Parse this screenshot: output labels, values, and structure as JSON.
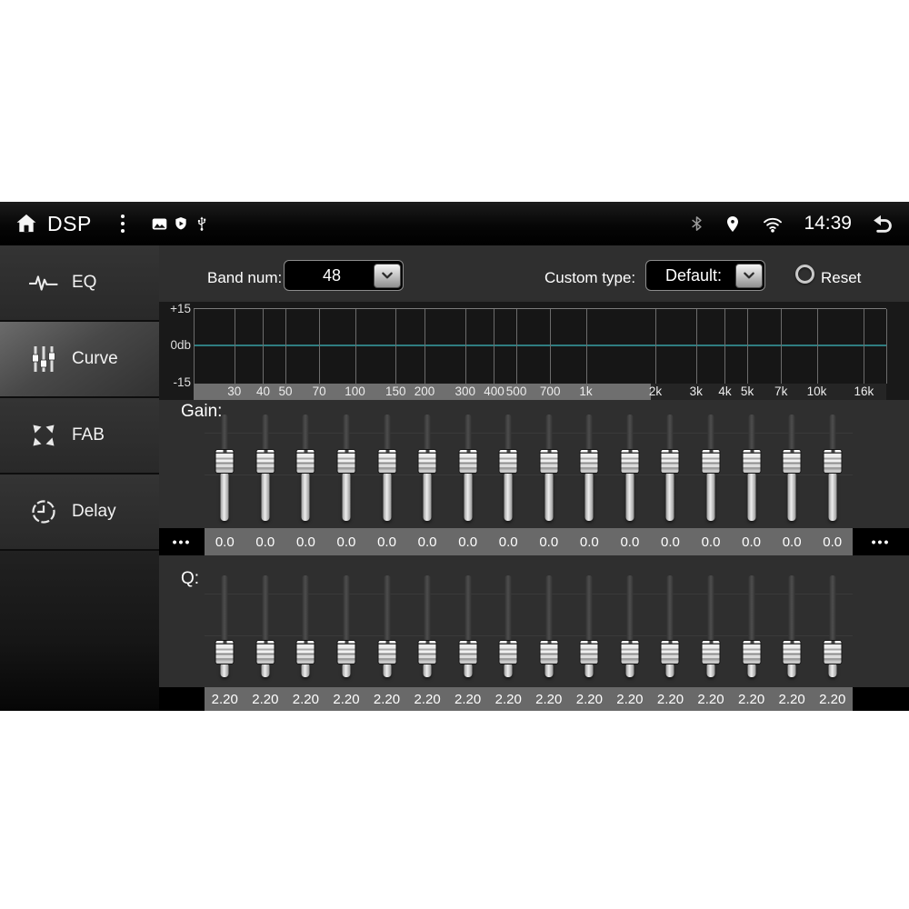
{
  "status_bar": {
    "app_title": "DSP",
    "time": "14:39",
    "left_icons": [
      "home-icon",
      "overflow-menu-icon",
      "gallery-icon",
      "shield-icon",
      "usb-icon"
    ],
    "right_icons": [
      "bluetooth-icon",
      "location-icon",
      "wifi-icon",
      "back-icon"
    ]
  },
  "sidebar": {
    "items": [
      {
        "label": "EQ",
        "icon": "eq-waveform-icon",
        "selected": false
      },
      {
        "label": "Curve",
        "icon": "sliders-icon",
        "selected": true
      },
      {
        "label": "FAB",
        "icon": "fab-arrows-icon",
        "selected": false
      },
      {
        "label": "Delay",
        "icon": "clock-icon",
        "selected": false
      }
    ]
  },
  "controls": {
    "band_num_label": "Band num:",
    "band_num_value": "48",
    "custom_type_label": "Custom type:",
    "custom_type_value": "Default:",
    "reset_label": "Reset",
    "reset_selected": false
  },
  "curve_plot": {
    "y_axis_labels": [
      "+15",
      "0db",
      "-15"
    ],
    "freq_labels": [
      "30",
      "40",
      "50",
      "70",
      "100",
      "150",
      "200",
      "300",
      "400",
      "500",
      "700",
      "1k",
      "2k",
      "3k",
      "4k",
      "5k",
      "7k",
      "10k",
      "16k"
    ],
    "freq_hz": [
      30,
      40,
      50,
      70,
      100,
      150,
      200,
      300,
      400,
      500,
      700,
      1000,
      2000,
      3000,
      4000,
      5000,
      7000,
      10000,
      16000
    ],
    "range_hz": [
      20,
      20000
    ],
    "zero_line_color": "#2f7d80",
    "scroll_thumb_pct": 66
  },
  "gain": {
    "label": "Gain:",
    "range": [
      -15,
      15
    ],
    "values": [
      "0.0",
      "0.0",
      "0.0",
      "0.0",
      "0.0",
      "0.0",
      "0.0",
      "0.0",
      "0.0",
      "0.0",
      "0.0",
      "0.0",
      "0.0",
      "0.0",
      "0.0",
      "0.0"
    ],
    "overflow_left": "•••",
    "overflow_right": "•••"
  },
  "q": {
    "label": "Q:",
    "values": [
      "2.20",
      "2.20",
      "2.20",
      "2.20",
      "2.20",
      "2.20",
      "2.20",
      "2.20",
      "2.20",
      "2.20",
      "2.20",
      "2.20",
      "2.20",
      "2.20",
      "2.20",
      "2.20"
    ]
  }
}
